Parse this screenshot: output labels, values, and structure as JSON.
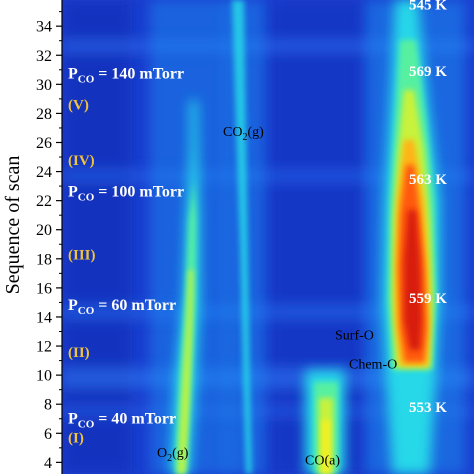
{
  "chart_data": {
    "type": "heatmap",
    "ylabel": "Sequence of scan",
    "ylim": [
      3.2,
      35.8
    ],
    "yticks": [
      "4",
      "6",
      "8",
      "10",
      "12",
      "14",
      "16",
      "18",
      "20",
      "22",
      "24",
      "26",
      "28",
      "30",
      "32",
      "34"
    ],
    "colormap": [
      "#0a1f86",
      "#1446d8",
      "#1f8ff0",
      "#26d8e8",
      "#56f0a0",
      "#c8f23a",
      "#f5f020",
      "#ffb414",
      "#ff5a0a",
      "#d81a0a"
    ],
    "pressure_labels": [
      {
        "prefix": "P",
        "subscript": "CO",
        "value": " = 140 mTorr",
        "scan": 30.8
      },
      {
        "prefix": "P",
        "subscript": "CO",
        "value": " = 100 mTorr",
        "scan": 22.7
      },
      {
        "prefix": "P",
        "subscript": "CO",
        "value": " = 60 mTorr",
        "scan": 14.9
      },
      {
        "prefix": "P",
        "subscript": "CO",
        "value": " = 40 mTorr",
        "scan": 7.1
      }
    ],
    "stage_labels": [
      {
        "text": "(V)",
        "scan": 28.6
      },
      {
        "text": "(IV)",
        "scan": 24.8
      },
      {
        "text": "(III)",
        "scan": 18.3
      },
      {
        "text": "(II)",
        "scan": 11.6
      },
      {
        "text": "(I)",
        "scan": 5.7
      }
    ],
    "temperature_labels": [
      {
        "text": "545 K",
        "scan": 35.5
      },
      {
        "text": "569 K",
        "scan": 30.9
      },
      {
        "text": "563 K",
        "scan": 23.5
      },
      {
        "text": "559 K",
        "scan": 15.3
      },
      {
        "text": "553 K",
        "scan": 7.8
      }
    ],
    "peak_labels": [
      {
        "text": "CO",
        "subscript": "2",
        "suffix": "(g)",
        "scan": 26.8
      },
      {
        "text": "Surf-O",
        "subscript": "",
        "suffix": "",
        "scan": 12.8
      },
      {
        "text": "Chem-O",
        "subscript": "",
        "suffix": "",
        "scan": 10.8
      },
      {
        "text": "O",
        "subscript": "2",
        "suffix": "(g)",
        "scan": 4.7
      },
      {
        "text": "CO(a)",
        "subscript": "",
        "suffix": "",
        "scan": 4.2
      }
    ]
  }
}
